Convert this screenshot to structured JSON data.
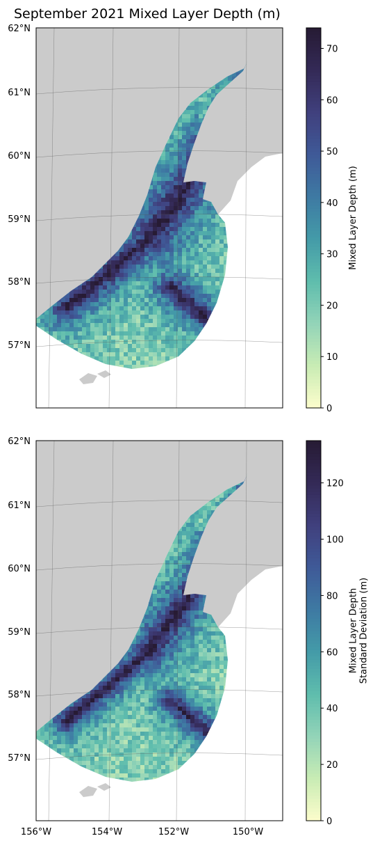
{
  "title": "September 2021 Mixed Layer Depth (m)",
  "colors": {
    "land": "#cbcbcb",
    "ocean": "#ffffff",
    "cmap": [
      "#fdfdcc",
      "#c9ecb4",
      "#93d4b8",
      "#5fbdad",
      "#449ba8",
      "#3e7aa3",
      "#3f5a98",
      "#40407d",
      "#342a57",
      "#271b34"
    ]
  },
  "lat_labels": [
    "62°N",
    "61°N",
    "60°N",
    "59°N",
    "58°N",
    "57°N"
  ],
  "lon_labels": [
    "156°W",
    "154°W",
    "152°W",
    "150°W"
  ],
  "panels": [
    {
      "id": "mean",
      "colorbar": {
        "label_lines": [
          "Mixed Layer Depth (m)"
        ],
        "min": 0,
        "max": 74,
        "ticks": [
          {
            "value": 0,
            "label": "0"
          },
          {
            "value": 10,
            "label": "10"
          },
          {
            "value": 20,
            "label": "20"
          },
          {
            "value": 30,
            "label": "30"
          },
          {
            "value": 40,
            "label": "40"
          },
          {
            "value": 50,
            "label": "50"
          },
          {
            "value": 60,
            "label": "60"
          },
          {
            "value": 70,
            "label": "70"
          }
        ]
      }
    },
    {
      "id": "std",
      "colorbar": {
        "label_lines": [
          "Mixed Layer Depth",
          "Standard Deviation (m)"
        ],
        "min": 0,
        "max": 135,
        "ticks": [
          {
            "value": 0,
            "label": "0"
          },
          {
            "value": 20,
            "label": "20"
          },
          {
            "value": 40,
            "label": "40"
          },
          {
            "value": 60,
            "label": "60"
          },
          {
            "value": 80,
            "label": "80"
          },
          {
            "value": 100,
            "label": "100"
          },
          {
            "value": 120,
            "label": "120"
          }
        ]
      }
    }
  ]
}
